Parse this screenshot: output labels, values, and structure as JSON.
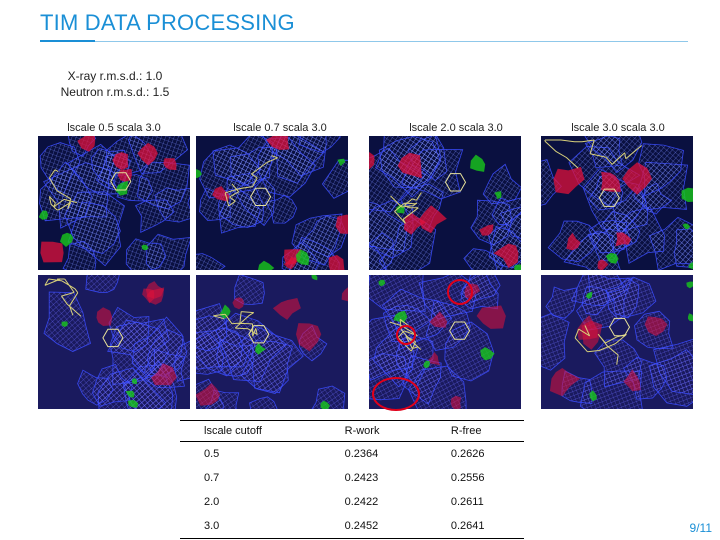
{
  "slide": {
    "title": "TIM DATA PROCESSING",
    "xray_rmsd": "X-ray r.m.s.d.: 1.0",
    "neutron_rmsd": "Neutron r.m.s.d.: 1.5",
    "page": "9/11"
  },
  "columns": [
    {
      "label": "lscale 0.5 scala 3.0"
    },
    {
      "label": "lscale 0.7 scala 3.0"
    },
    {
      "label": "lscale 2.0 scala 3.0"
    },
    {
      "label": "lscale 3.0 scala 3.0"
    }
  ],
  "colors": {
    "accent": "#1a8fd6",
    "density_blue": "#3a4cff",
    "density_red": "#e0103a",
    "density_green": "#18c81a",
    "highlight": "#e0001a"
  },
  "table": {
    "headers": [
      "lscale cutoff",
      "R-work",
      "R-free"
    ],
    "rows": [
      [
        "0.5",
        "0.2364",
        "0.2626"
      ],
      [
        "0.7",
        "0.2423",
        "0.2556"
      ],
      [
        "2.0",
        "0.2422",
        "0.2611"
      ],
      [
        "3.0",
        "0.2452",
        "0.2641"
      ]
    ]
  }
}
